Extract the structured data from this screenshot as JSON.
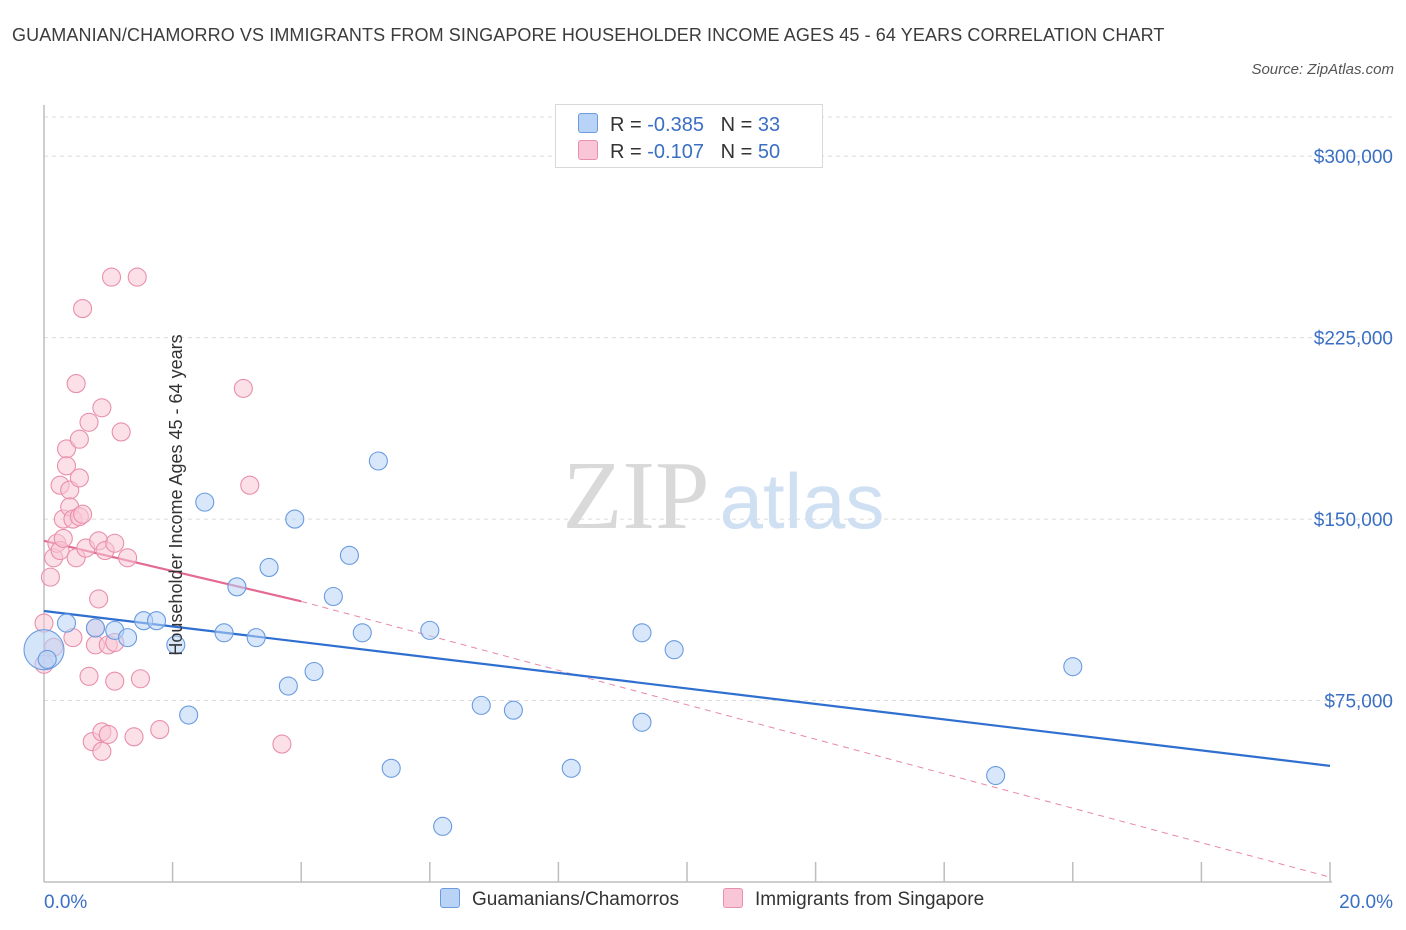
{
  "title": "GUAMANIAN/CHAMORRO VS IMMIGRANTS FROM SINGAPORE HOUSEHOLDER INCOME AGES 45 - 64 YEARS CORRELATION CHART",
  "source": "Source: ZipAtlas.com",
  "watermark": {
    "zip": "ZIP",
    "atlas": "atlas"
  },
  "legend": {
    "series1": {
      "r_label": "R =",
      "r_value": "-0.385",
      "n_label": "N =",
      "n_value": "33"
    },
    "series2": {
      "r_label": "R =",
      "r_value": "-0.107",
      "n_label": "N =",
      "n_value": "50"
    }
  },
  "colors": {
    "series1_fill": "#b8d3f5",
    "series1_stroke": "#6a9be0",
    "series1_line": "#2f6fd0",
    "series2_fill": "#f8c6d6",
    "series2_stroke": "#e98fac",
    "series2_line": "#e46a93",
    "accent_text": "#3a6fc4",
    "grid": "#dcdcdc"
  },
  "chart_data": {
    "type": "scatter",
    "xlabel": "",
    "ylabel": "Householder Income Ages 45 - 64 years",
    "xlim": [
      0,
      20
    ],
    "ylim": [
      0,
      300000
    ],
    "x_ticks": [
      "0.0%",
      "20.0%"
    ],
    "y_ticks": [
      "$75,000",
      "$150,000",
      "$225,000",
      "$300,000"
    ],
    "y_tick_values": [
      75000,
      150000,
      225000,
      300000
    ],
    "grid": true,
    "legend_position": "top-center",
    "series": [
      {
        "name": "Guamanians/Chamorros",
        "points": [
          [
            0.0,
            96000
          ],
          [
            0.35,
            107000
          ],
          [
            0.8,
            105000
          ],
          [
            1.1,
            104000
          ],
          [
            1.3,
            101000
          ],
          [
            1.55,
            108000
          ],
          [
            1.75,
            108000
          ],
          [
            2.05,
            98000
          ],
          [
            2.25,
            69000
          ],
          [
            2.5,
            157000
          ],
          [
            2.8,
            103000
          ],
          [
            3.0,
            122000
          ],
          [
            3.3,
            101000
          ],
          [
            3.5,
            130000
          ],
          [
            3.8,
            81000
          ],
          [
            3.9,
            150000
          ],
          [
            4.2,
            87000
          ],
          [
            4.5,
            118000
          ],
          [
            4.75,
            135000
          ],
          [
            4.95,
            103000
          ],
          [
            5.2,
            174000
          ],
          [
            5.4,
            47000
          ],
          [
            6.0,
            104000
          ],
          [
            6.2,
            23000
          ],
          [
            6.8,
            73000
          ],
          [
            7.3,
            71000
          ],
          [
            8.2,
            47000
          ],
          [
            9.3,
            103000
          ],
          [
            9.3,
            66000
          ],
          [
            9.8,
            96000
          ],
          [
            14.8,
            44000
          ],
          [
            16.0,
            89000
          ],
          [
            0.05,
            92000
          ]
        ],
        "trend": {
          "x": [
            0,
            20
          ],
          "y": [
            112000,
            48000
          ]
        }
      },
      {
        "name": "Immigrants from Singapore",
        "points": [
          [
            0.0,
            107000
          ],
          [
            0.0,
            90000
          ],
          [
            0.1,
            126000
          ],
          [
            0.15,
            134000
          ],
          [
            0.2,
            140000
          ],
          [
            0.25,
            137000
          ],
          [
            0.3,
            142000
          ],
          [
            0.3,
            150000
          ],
          [
            0.25,
            164000
          ],
          [
            0.35,
            179000
          ],
          [
            0.35,
            172000
          ],
          [
            0.4,
            162000
          ],
          [
            0.4,
            155000
          ],
          [
            0.45,
            150000
          ],
          [
            0.5,
            134000
          ],
          [
            0.5,
            206000
          ],
          [
            0.55,
            167000
          ],
          [
            0.55,
            151000
          ],
          [
            0.55,
            183000
          ],
          [
            0.6,
            152000
          ],
          [
            0.6,
            237000
          ],
          [
            0.65,
            138000
          ],
          [
            0.7,
            190000
          ],
          [
            0.7,
            85000
          ],
          [
            0.75,
            58000
          ],
          [
            0.8,
            105000
          ],
          [
            0.8,
            98000
          ],
          [
            0.85,
            141000
          ],
          [
            0.85,
            117000
          ],
          [
            0.9,
            62000
          ],
          [
            0.95,
            137000
          ],
          [
            0.9,
            196000
          ],
          [
            1.0,
            98000
          ],
          [
            1.0,
            61000
          ],
          [
            0.9,
            54000
          ],
          [
            1.05,
            250000
          ],
          [
            1.1,
            140000
          ],
          [
            1.1,
            83000
          ],
          [
            1.1,
            99000
          ],
          [
            1.2,
            186000
          ],
          [
            1.3,
            134000
          ],
          [
            1.4,
            60000
          ],
          [
            1.45,
            250000
          ],
          [
            1.5,
            84000
          ],
          [
            1.8,
            63000
          ],
          [
            3.1,
            204000
          ],
          [
            3.2,
            164000
          ],
          [
            3.7,
            57000
          ],
          [
            0.45,
            101000
          ],
          [
            0.15,
            97000
          ]
        ],
        "trend": {
          "x": [
            0,
            4.0
          ],
          "y": [
            141000,
            116000
          ]
        },
        "trend_extended": {
          "x": [
            4.0,
            20
          ],
          "y": [
            116000,
            2000
          ]
        }
      }
    ]
  },
  "bottom_legend": {
    "series1_label": "Guamanians/Chamorros",
    "series2_label": "Immigrants from Singapore"
  }
}
